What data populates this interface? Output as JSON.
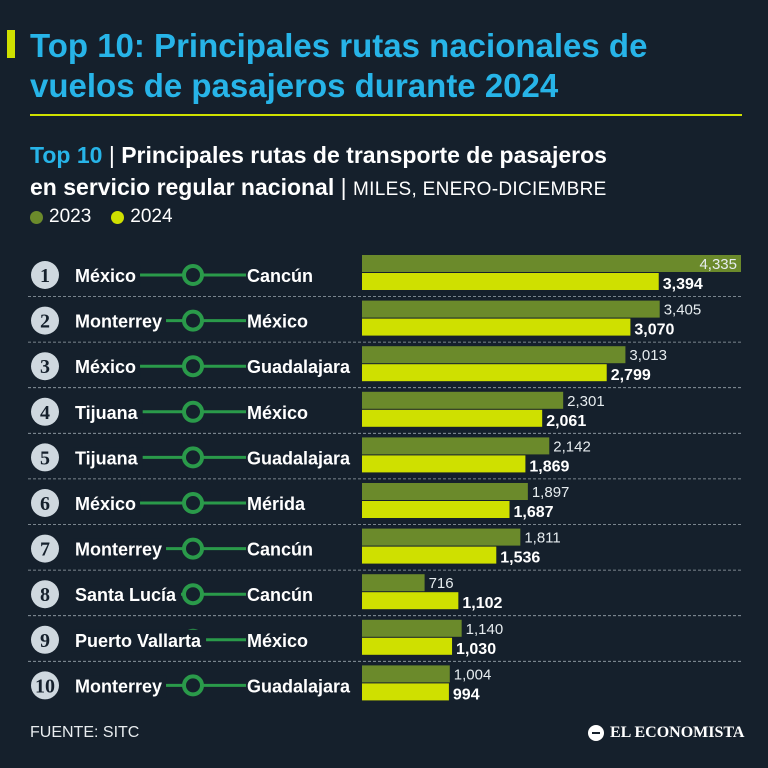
{
  "header": {
    "title": "Top 10: Principales rutas nacionales de vuelos de pasajeros durante 2024",
    "subtitle_lead": "Top 10",
    "subtitle_sep1": "|",
    "subtitle_line1": "Principales rutas de transporte de pasajeros",
    "subtitle_line2": "en servicio regular nacional",
    "subtitle_sep2": "|",
    "subtitle_units": "MILES, ENERO-DICIEMBRE"
  },
  "legend": {
    "label_2023": "2023",
    "label_2024": "2024"
  },
  "colors": {
    "background": "#15202c",
    "title": "#27b4e8",
    "accent": "#cfe000",
    "bar_2023": "#6b8a2b",
    "bar_2024": "#cfe000",
    "route_line": "#2a9a4a",
    "rank_circle": "#cfd8df"
  },
  "chart_data": {
    "type": "bar",
    "orientation": "horizontal",
    "title": "Principales rutas de transporte de pasajeros en servicio regular nacional",
    "units": "MILES, ENERO-DICIEMBRE",
    "ranks": [
      "1",
      "2",
      "3",
      "4",
      "5",
      "6",
      "7",
      "8",
      "9",
      "10"
    ],
    "origins": [
      "México",
      "Monterrey",
      "México",
      "Tijuana",
      "Tijuana",
      "México",
      "Monterrey",
      "Santa Lucía",
      "Puerto Vallarta",
      "Monterrey"
    ],
    "destinations": [
      "Cancún",
      "México",
      "Guadalajara",
      "México",
      "Guadalajara",
      "Mérida",
      "Cancún",
      "Cancún",
      "México",
      "Guadalajara"
    ],
    "series": [
      {
        "name": "2023",
        "values": [
          4335,
          3405,
          3013,
          2301,
          2142,
          1897,
          1811,
          716,
          1140,
          1004
        ],
        "labels": [
          "4,335",
          "3,405",
          "3,013",
          "2,301",
          "2,142",
          "1,897",
          "1,811",
          "716",
          "1,140",
          "1,004"
        ]
      },
      {
        "name": "2024",
        "values": [
          3394,
          3070,
          2799,
          2061,
          1869,
          1687,
          1536,
          1102,
          1030,
          994
        ],
        "labels": [
          "3,394",
          "3,070",
          "2,799",
          "2,061",
          "1,869",
          "1,687",
          "1,536",
          "1,102",
          "1,030",
          "994"
        ]
      }
    ],
    "xlim": [
      0,
      4335
    ]
  },
  "footer": {
    "source": "FUENTE: SITC",
    "brand": "EL ECONOMISTA"
  }
}
